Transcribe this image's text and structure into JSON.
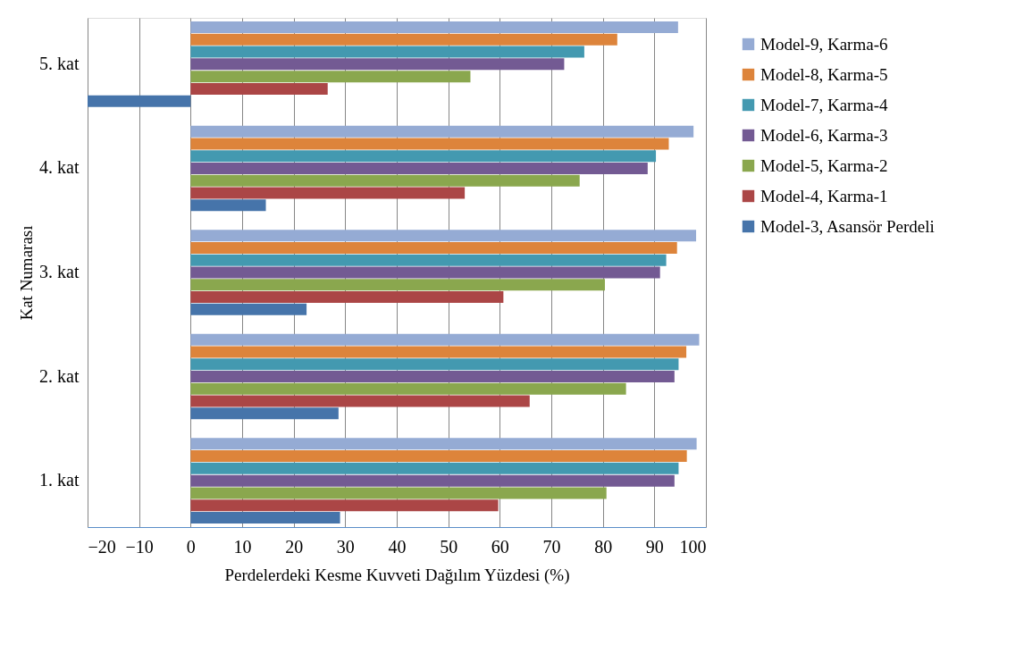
{
  "chart_data": {
    "type": "bar",
    "orientation": "horizontal",
    "xlabel": "Perdelerdeki Kesme Kuvveti Dağılım Yüzdesi (%)",
    "ylabel": "Kat Numarası",
    "categories": [
      "5. kat",
      "4. kat",
      "3. kat",
      "2. kat",
      "1. kat"
    ],
    "series": [
      {
        "name": "Model-9, Karma-6",
        "color": "#95abd4",
        "values": [
          94.6,
          97.6,
          98.1,
          98.7,
          98.2
        ]
      },
      {
        "name": "Model-8, Karma-5",
        "color": "#dd843b",
        "values": [
          82.8,
          92.8,
          94.4,
          96.2,
          96.3
        ]
      },
      {
        "name": "Model-7, Karma-4",
        "color": "#4399b0",
        "values": [
          76.4,
          90.3,
          92.3,
          94.7,
          94.7
        ]
      },
      {
        "name": "Model-6, Karma-3",
        "color": "#735a93",
        "values": [
          72.5,
          88.7,
          91.1,
          93.9,
          93.9
        ]
      },
      {
        "name": "Model-5, Karma-2",
        "color": "#8aa74e",
        "values": [
          54.3,
          75.5,
          80.4,
          84.5,
          80.7
        ]
      },
      {
        "name": "Model-4, Karma-1",
        "color": "#ab4646",
        "values": [
          26.6,
          53.2,
          60.7,
          65.8,
          59.7
        ]
      },
      {
        "name": "Model-3, Asansör Perdeli",
        "color": "#4674aa",
        "values": [
          -20,
          14.6,
          22.5,
          28.7,
          29.0
        ]
      }
    ],
    "xlim": [
      -20,
      100
    ],
    "xticks": [
      -20,
      -10,
      0,
      10,
      20,
      30,
      40,
      50,
      60,
      70,
      80,
      90,
      100
    ],
    "grid": "x",
    "legend": "right"
  }
}
